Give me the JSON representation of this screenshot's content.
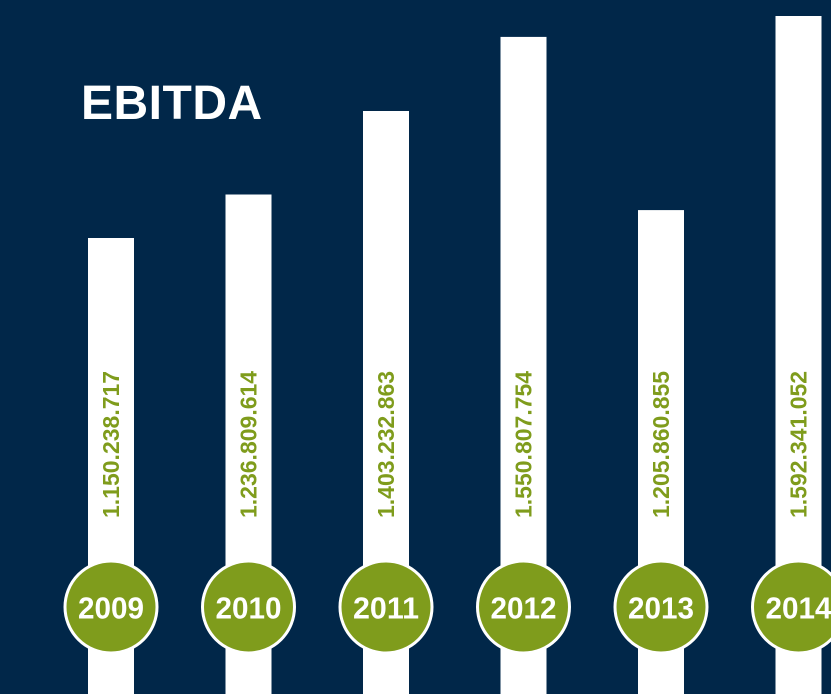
{
  "title": "EBITDA",
  "colors": {
    "background": "#012749",
    "bar": "#ffffff",
    "accent": "#7f9c1c",
    "value_text": "#7f9c1c",
    "year_text": "#ffffff"
  },
  "chart_data": {
    "type": "bar",
    "title": "EBITDA",
    "categories": [
      "2009",
      "2010",
      "2011",
      "2012",
      "2013",
      "2014"
    ],
    "values": [
      1150238717,
      1236809614,
      1403232863,
      1550807754,
      1205860855,
      1592341052
    ],
    "value_labels": [
      "1.150.238.717",
      "1.236.809.614",
      "1.403.232.863",
      "1.550.807.754",
      "1.205.860.855",
      "1.592.341.052"
    ],
    "xlabel": "",
    "ylabel": "",
    "grid": false,
    "legend": "none"
  }
}
